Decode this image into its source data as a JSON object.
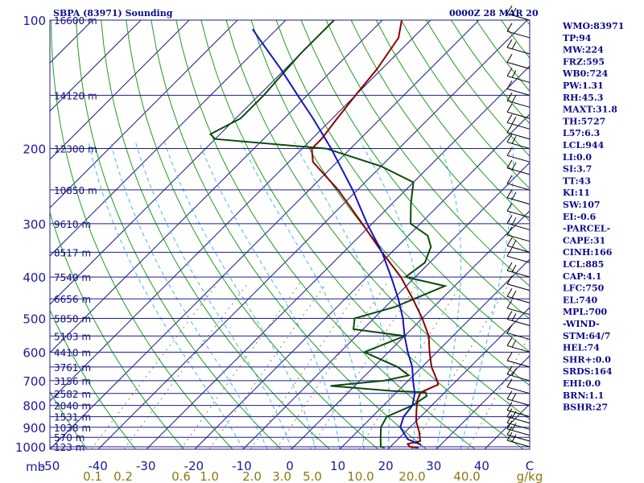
{
  "header": {
    "station": "SBPA (83971) Sounding",
    "time": "0000Z 28 MAR 20"
  },
  "chart_data": {
    "type": "line",
    "title": "SBPA (83971) Sounding",
    "pressure_unit": "mb",
    "pressure_ticks": [
      "100",
      "200",
      "300",
      "400",
      "500",
      "600",
      "700",
      "800",
      "900",
      "1000"
    ],
    "pressure_values": [
      100,
      200,
      300,
      400,
      500,
      600,
      700,
      800,
      900,
      1000
    ],
    "temperature_ticks": [
      "-50",
      "-40",
      "-30",
      "-20",
      "-10",
      "0",
      "10",
      "20",
      "30",
      "40",
      "C"
    ],
    "temperature_values": [
      -50,
      -40,
      -30,
      -20,
      -10,
      0,
      10,
      20,
      30,
      40
    ],
    "mixing_ratio_ticks": [
      "0.1",
      "0.2",
      "0.6",
      "1.0",
      "2.0",
      "3.0",
      "5.0",
      "10.0",
      "20.0",
      "40.0",
      "g/kg"
    ],
    "mixing_ratio_values": [
      0.1,
      0.2,
      0.6,
      1.0,
      2.0,
      3.0,
      5.0,
      10.0,
      20.0,
      40.0
    ],
    "height_labels": [
      {
        "text": "16600 m",
        "p": 100
      },
      {
        "text": "14120 m",
        "p": 150
      },
      {
        "text": "12300 m",
        "p": 200
      },
      {
        "text": "10850 m",
        "p": 250
      },
      {
        "text": "9610 m",
        "p": 300
      },
      {
        "text": "8517 m",
        "p": 350
      },
      {
        "text": "7540 m",
        "p": 400
      },
      {
        "text": "6656 m",
        "p": 450
      },
      {
        "text": "5850 m",
        "p": 500
      },
      {
        "text": "5103 m",
        "p": 550
      },
      {
        "text": "4410 m",
        "p": 600
      },
      {
        "text": "3761 m",
        "p": 650
      },
      {
        "text": "3156 m",
        "p": 700
      },
      {
        "text": "2582 m",
        "p": 750
      },
      {
        "text": "2040 m",
        "p": 800
      },
      {
        "text": "1531 m",
        "p": 850
      },
      {
        "text": "1038 m",
        "p": 900
      },
      {
        "text": "570 m",
        "p": 950
      },
      {
        "text": "123 m",
        "p": 1000
      }
    ],
    "series": [
      {
        "values": [
          {
            "p": 1005,
            "t": 26
          },
          {
            "p": 1000,
            "t": 24
          },
          {
            "p": 985,
            "t": 23
          },
          {
            "p": 970,
            "t": 25
          },
          {
            "p": 925,
            "t": 23
          },
          {
            "p": 870,
            "t": 20
          },
          {
            "p": 825,
            "t": 18
          },
          {
            "p": 780,
            "t": 16
          },
          {
            "p": 745,
            "t": 15
          },
          {
            "p": 715,
            "t": 17
          },
          {
            "p": 700,
            "t": 16
          },
          {
            "p": 650,
            "t": 12
          },
          {
            "p": 600,
            "t": 8.5
          },
          {
            "p": 550,
            "t": 5
          },
          {
            "p": 500,
            "t": 0
          },
          {
            "p": 450,
            "t": -6
          },
          {
            "p": 400,
            "t": -13
          },
          {
            "p": 350,
            "t": -22
          },
          {
            "p": 300,
            "t": -32
          },
          {
            "p": 250,
            "t": -44
          },
          {
            "p": 215,
            "t": -55
          },
          {
            "p": 205,
            "t": -57
          },
          {
            "p": 200,
            "t": -58
          },
          {
            "p": 190,
            "t": -58
          },
          {
            "p": 170,
            "t": -59
          },
          {
            "p": 150,
            "t": -60
          },
          {
            "p": 130,
            "t": -61
          },
          {
            "p": 110,
            "t": -63
          },
          {
            "p": 100,
            "t": -66
          }
        ]
      },
      {
        "values": [
          {
            "p": 1005,
            "t": 19
          },
          {
            "p": 1000,
            "t": 18
          },
          {
            "p": 950,
            "t": 16
          },
          {
            "p": 900,
            "t": 14
          },
          {
            "p": 850,
            "t": 13
          },
          {
            "p": 800,
            "t": 16
          },
          {
            "p": 760,
            "t": 17
          },
          {
            "p": 745,
            "t": 16
          },
          {
            "p": 740,
            "t": 9
          },
          {
            "p": 720,
            "t": -5
          },
          {
            "p": 700,
            "t": 5
          },
          {
            "p": 680,
            "t": 9
          },
          {
            "p": 650,
            "t": 5
          },
          {
            "p": 600,
            "t": -5
          },
          {
            "p": 550,
            "t": 0
          },
          {
            "p": 530,
            "t": -12
          },
          {
            "p": 500,
            "t": -14
          },
          {
            "p": 470,
            "t": -8
          },
          {
            "p": 420,
            "t": -2
          },
          {
            "p": 400,
            "t": -12
          },
          {
            "p": 370,
            "t": -11
          },
          {
            "p": 340,
            "t": -13
          },
          {
            "p": 320,
            "t": -16
          },
          {
            "p": 300,
            "t": -22
          },
          {
            "p": 270,
            "t": -26
          },
          {
            "p": 240,
            "t": -30
          },
          {
            "p": 220,
            "t": -40
          },
          {
            "p": 200,
            "t": -55
          },
          {
            "p": 190,
            "t": -80
          },
          {
            "p": 185,
            "t": -82
          },
          {
            "p": 170,
            "t": -79
          },
          {
            "p": 150,
            "t": -79
          },
          {
            "p": 120,
            "t": -80
          },
          {
            "p": 100,
            "t": -80
          }
        ]
      },
      {
        "values": [
          {
            "p": 990,
            "t": 26
          },
          {
            "p": 960,
            "t": 22
          },
          {
            "p": 900,
            "t": 18
          },
          {
            "p": 850,
            "t": 16.5
          },
          {
            "p": 800,
            "t": 16
          },
          {
            "p": 750,
            "t": 14
          },
          {
            "p": 700,
            "t": 11
          },
          {
            "p": 650,
            "t": 8
          },
          {
            "p": 600,
            "t": 4
          },
          {
            "p": 550,
            "t": 0
          },
          {
            "p": 500,
            "t": -4
          },
          {
            "p": 450,
            "t": -9
          },
          {
            "p": 400,
            "t": -15
          },
          {
            "p": 350,
            "t": -22
          },
          {
            "p": 300,
            "t": -31
          },
          {
            "p": 250,
            "t": -41
          },
          {
            "p": 200,
            "t": -54
          },
          {
            "p": 170,
            "t": -64
          },
          {
            "p": 150,
            "t": -72
          },
          {
            "p": 130,
            "t": -81
          },
          {
            "p": 110,
            "t": -92
          },
          {
            "p": 105,
            "t": -95
          }
        ]
      }
    ],
    "winds_note": "wind barbs plotted at right",
    "grid": true
  },
  "indices": {
    "lines": [
      "WMO:83971",
      "TP:94",
      "MW:224",
      "FRZ:595",
      "WB0:724",
      "PW:1.31",
      "RH:45.3",
      "MAXT:31.8",
      "TH:5727",
      "L57:6.3",
      "LCL:944",
      "LI:0.0",
      "SI:3.7",
      "TT:43",
      "KI:11",
      "SW:107",
      "EI:-0.6",
      "-PARCEL-",
      "CAPE:31",
      "CINH:166",
      "LCL:885",
      "CAP:4.1",
      "LFC:750",
      "EL:740",
      "MPL:700",
      "-WIND-",
      "STM:64/7",
      "HEL:74",
      "SHR+:0.0",
      "SRDS:164",
      "EHI:0.0",
      "BRN:1.1",
      "BSHR:27"
    ]
  },
  "colors": {
    "frame": "#1c1c8a",
    "isobar": "#1c1c8a",
    "isotherm": "#1c1c8a",
    "dry_adiabat": "#1e9e1e",
    "moist_adiabat": "#40b8e8",
    "mixing_ratio": "#6a6a2a",
    "temp": "#8b0000",
    "dewpoint": "#0c4a0c",
    "parcel": "#1414c0",
    "text": "#0a0a8c"
  }
}
